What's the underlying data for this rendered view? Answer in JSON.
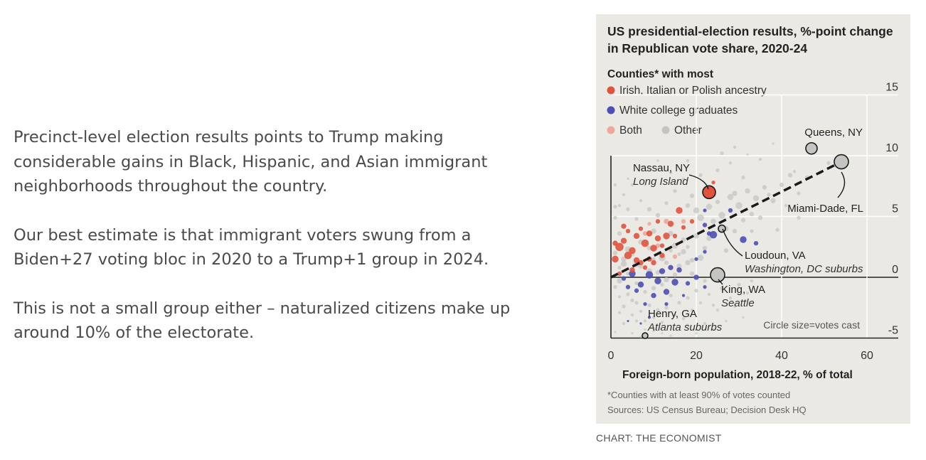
{
  "article": {
    "paragraphs": [
      "Precinct-level election results points to Trump making considerable gains in Black, Hispanic, and Asian immigrant neighborhoods throughout the country.",
      "Our best estimate is that immigrant voters swung from a Biden+27 voting bloc in 2020 to a Trump+1 group in 2024.",
      "This is not a small group either – naturalized citizens make up around 10% of the electorate."
    ]
  },
  "credit": "CHART: THE ECONOMIST",
  "chart_data": {
    "type": "scatter",
    "title": "US presidential-election results, %-point change in Republican vote share, 2020-24",
    "xlabel": "Foreign-born population, 2018-22, % of total",
    "ylabel": "",
    "xlim": [
      0,
      67
    ],
    "ylim": [
      -6,
      16
    ],
    "x_ticks": [
      0,
      20,
      40,
      60
    ],
    "y_ticks": [
      -5,
      0,
      5,
      10,
      15
    ],
    "grid": true,
    "legend_title": "Counties* with most",
    "legend": [
      {
        "label": "Irish, Italian or Polish ancestry",
        "color": "#e0533d"
      },
      {
        "label": "White college graduates",
        "color": "#4b4fb3"
      },
      {
        "label": "Both",
        "color": "#f0a79a"
      },
      {
        "label": "Other",
        "color": "#c4c4c2"
      }
    ],
    "size_note": "Circle size=votes cast",
    "trend_line": {
      "x": [
        0,
        54
      ],
      "y": [
        0,
        9.5
      ],
      "style": "dashed"
    },
    "annotations": [
      {
        "name": "Queens, NY",
        "subtitle": "",
        "x": 47,
        "y": 10.6,
        "size": 8
      },
      {
        "name": "Nassau, NY",
        "subtitle": "Long Island",
        "x": 23,
        "y": 7,
        "size": 9
      },
      {
        "name": "Miami-Dade, FL",
        "subtitle": "",
        "x": 54,
        "y": 9.5,
        "size": 10
      },
      {
        "name": "Loudoun, VA",
        "subtitle": "Washington, DC suburbs",
        "x": 26,
        "y": 4,
        "size": 5
      },
      {
        "name": "King, WA",
        "subtitle": "Seattle",
        "x": 25,
        "y": 0.2,
        "size": 10
      },
      {
        "name": "Henry, GA",
        "subtitle": "Atlanta suburbs",
        "x": 8,
        "y": -4.8,
        "size": 4
      }
    ],
    "series": [
      {
        "name": "Irish, Italian or Polish ancestry",
        "color": "#e0533d",
        "points": [
          [
            1,
            1.5,
            9
          ],
          [
            2,
            2.5,
            11
          ],
          [
            3,
            3,
            8
          ],
          [
            4,
            1.8,
            10
          ],
          [
            5,
            2.2,
            9
          ],
          [
            6,
            3.4,
            8
          ],
          [
            7,
            1.2,
            7
          ],
          [
            8,
            2.8,
            10
          ],
          [
            9,
            3.6,
            8
          ],
          [
            10,
            2.4,
            9
          ],
          [
            11,
            3.2,
            8
          ],
          [
            12,
            1.8,
            7
          ],
          [
            13,
            3.4,
            9
          ],
          [
            14,
            4.4,
            8
          ],
          [
            16,
            5.5,
            9
          ],
          [
            19,
            4.6,
            6
          ],
          [
            24,
            7.8,
            5
          ],
          [
            3,
            4.2,
            7
          ],
          [
            5,
            0.6,
            7
          ],
          [
            2,
            0.3,
            6
          ],
          [
            7,
            4,
            6
          ],
          [
            9,
            1.5,
            7
          ],
          [
            11,
            4.6,
            6
          ],
          [
            15,
            3.4,
            6
          ],
          [
            1,
            2.8,
            7
          ],
          [
            4,
            3.8,
            6
          ],
          [
            6,
            1.4,
            8
          ],
          [
            8,
            0.8,
            6
          ],
          [
            10,
            1.2,
            7
          ],
          [
            12,
            2.6,
            6
          ],
          [
            17,
            4.1,
            6
          ]
        ]
      },
      {
        "name": "White college graduates",
        "color": "#4b4fb3",
        "points": [
          [
            5,
            0.3,
            9
          ],
          [
            7,
            -0.6,
            8
          ],
          [
            9,
            0.2,
            10
          ],
          [
            11,
            -0.3,
            9
          ],
          [
            12,
            0.5,
            8
          ],
          [
            13,
            -1.2,
            8
          ],
          [
            14,
            0.8,
            7
          ],
          [
            10,
            -1.5,
            7
          ],
          [
            6,
            -1.1,
            6
          ],
          [
            8,
            -2.2,
            5
          ],
          [
            15,
            -0.4,
            9
          ],
          [
            16,
            0.6,
            7
          ],
          [
            4,
            -0.8,
            6
          ],
          [
            18,
            -0.5,
            6
          ],
          [
            20,
            1.5,
            5
          ],
          [
            22,
            -0.8,
            5
          ],
          [
            22,
            2.1,
            5
          ],
          [
            23,
            3.6,
            6
          ],
          [
            22,
            5.5,
            5
          ],
          [
            20,
            0,
            7
          ],
          [
            22,
            4.3,
            6
          ],
          [
            24,
            3.5,
            10
          ],
          [
            28,
            5.5,
            6
          ],
          [
            31,
            3.1,
            9
          ],
          [
            34,
            2.8,
            6
          ],
          [
            3,
            -0.1,
            6
          ],
          [
            9,
            -3.3,
            4
          ],
          [
            4,
            -3.6,
            3
          ],
          [
            13,
            -2.2,
            5
          ],
          [
            17,
            -1.5,
            4
          ],
          [
            7,
            -3.8,
            3
          ]
        ]
      },
      {
        "name": "Both",
        "color": "#f0a79a",
        "points": [
          [
            13,
            4.6,
            7
          ],
          [
            11,
            2.6,
            6
          ],
          [
            8,
            3.6,
            6
          ],
          [
            15,
            1.7,
            6
          ],
          [
            17,
            4.6,
            6
          ],
          [
            9,
            4.4,
            5
          ]
        ]
      },
      {
        "name": "Other",
        "color": "#c4c4c2",
        "points": [
          [
            1,
            2,
            6
          ],
          [
            2,
            0.8,
            5
          ],
          [
            3,
            1.5,
            7
          ],
          [
            4,
            0.3,
            5
          ],
          [
            5,
            1.9,
            6
          ],
          [
            6,
            -0.5,
            5
          ],
          [
            7,
            0.9,
            6
          ],
          [
            8,
            -1.2,
            5
          ],
          [
            9,
            2.4,
            6
          ],
          [
            10,
            1.5,
            5
          ],
          [
            11,
            0.4,
            6
          ],
          [
            12,
            -0.6,
            5
          ],
          [
            13,
            1.2,
            6
          ],
          [
            14,
            2.2,
            5
          ],
          [
            15,
            0.2,
            6
          ],
          [
            16,
            1.9,
            5
          ],
          [
            17,
            3.1,
            6
          ],
          [
            18,
            2.5,
            5
          ],
          [
            19,
            1.4,
            6
          ],
          [
            20,
            3.4,
            7
          ],
          [
            21,
            4.9,
            9
          ],
          [
            22,
            2.4,
            6
          ],
          [
            23,
            5.8,
            8
          ],
          [
            24,
            4.6,
            7
          ],
          [
            25,
            6.2,
            6
          ],
          [
            26,
            5.1,
            9
          ],
          [
            27,
            4,
            7
          ],
          [
            28,
            6.6,
            8
          ],
          [
            29,
            3.8,
            6
          ],
          [
            30,
            5.9,
            9
          ],
          [
            31,
            4.7,
            6
          ],
          [
            32,
            7.1,
            7
          ],
          [
            33,
            5.2,
            6
          ],
          [
            34,
            6.5,
            8
          ],
          [
            35,
            4.9,
            6
          ],
          [
            36,
            7.4,
            6
          ],
          [
            38,
            6.3,
            7
          ],
          [
            40,
            7.6,
            6
          ],
          [
            42,
            8.4,
            6
          ],
          [
            44,
            6.9,
            5
          ],
          [
            46,
            8.2,
            6
          ],
          [
            49,
            8.6,
            5
          ],
          [
            51,
            9.4,
            5
          ],
          [
            26,
            10.2,
            5
          ],
          [
            29,
            10.7,
            4
          ],
          [
            31,
            8.2,
            5
          ],
          [
            21,
            8.4,
            5
          ],
          [
            18,
            9.6,
            4
          ],
          [
            35,
            9.7,
            4
          ],
          [
            38,
            11,
            3
          ],
          [
            23,
            3.2,
            7
          ],
          [
            27,
            2.2,
            6
          ],
          [
            29,
            6.9,
            7
          ],
          [
            33,
            3.8,
            5
          ],
          [
            20,
            5.5,
            8
          ],
          [
            19,
            6.7,
            6
          ],
          [
            24,
            6.8,
            8
          ],
          [
            25,
            8.8,
            5
          ],
          [
            1,
            -0.8,
            5
          ],
          [
            2,
            -1.6,
            4
          ],
          [
            3,
            -2.4,
            5
          ],
          [
            4,
            -1.4,
            5
          ],
          [
            5,
            -3.1,
            4
          ],
          [
            6,
            -2.1,
            5
          ],
          [
            7,
            -2.8,
            4
          ],
          [
            8,
            -3.6,
            4
          ],
          [
            9,
            -2.3,
            5
          ],
          [
            10,
            -3.3,
            4
          ],
          [
            11,
            -2.7,
            5
          ],
          [
            12,
            -3.7,
            4
          ],
          [
            13,
            -2.5,
            5
          ],
          [
            14,
            -1.5,
            5
          ],
          [
            15,
            -3.1,
            4
          ],
          [
            16,
            -2.1,
            5
          ],
          [
            17,
            -3.4,
            4
          ],
          [
            18,
            -1.7,
            5
          ],
          [
            19,
            -2.7,
            4
          ],
          [
            20,
            -1.1,
            5
          ],
          [
            21,
            -2.1,
            4
          ],
          [
            22,
            -0.3,
            5
          ],
          [
            23,
            -1.4,
            4
          ],
          [
            24,
            -2.3,
            4
          ],
          [
            26,
            -0.9,
            5
          ],
          [
            28,
            -1.7,
            4
          ],
          [
            30,
            -0.6,
            5
          ],
          [
            32,
            -1.3,
            4
          ],
          [
            1,
            4.9,
            5
          ],
          [
            2,
            5.9,
            4
          ],
          [
            3,
            6.8,
            4
          ],
          [
            4,
            5.6,
            5
          ],
          [
            5,
            7.6,
            4
          ],
          [
            6,
            4.8,
            5
          ],
          [
            7,
            6.3,
            4
          ],
          [
            8,
            7.6,
            3
          ],
          [
            2,
            3.6,
            6
          ],
          [
            1,
            5.8,
            5
          ],
          [
            3,
            -3.8,
            4
          ],
          [
            5,
            -4.6,
            3
          ],
          [
            6,
            -3.6,
            4
          ],
          [
            8,
            -4.3,
            3
          ],
          [
            10,
            -4.4,
            3
          ],
          [
            12,
            -4.6,
            3
          ],
          [
            3,
            1.1,
            8
          ],
          [
            6,
            1.1,
            9
          ],
          [
            9,
            0.5,
            8
          ],
          [
            12,
            1.6,
            9
          ],
          [
            15,
            2.6,
            8
          ],
          [
            18,
            1.2,
            7
          ],
          [
            21,
            1.6,
            8
          ],
          [
            14,
            3.6,
            7
          ],
          [
            17,
            2.1,
            7
          ],
          [
            2,
            -0.3,
            7
          ],
          [
            4,
            2.3,
            8
          ],
          [
            7,
            2.9,
            7
          ],
          [
            10,
            3.8,
            7
          ],
          [
            16,
            0.9,
            7
          ],
          [
            19,
            0.3,
            6
          ],
          [
            11,
            5.1,
            6
          ],
          [
            13,
            6.1,
            5
          ],
          [
            9,
            5.6,
            6
          ],
          [
            15,
            7.1,
            5
          ],
          [
            18,
            5.9,
            6
          ],
          [
            17,
            8.1,
            4
          ],
          [
            14,
            8.6,
            4
          ],
          [
            11,
            9.6,
            3
          ],
          [
            1,
            7.6,
            4
          ],
          [
            4,
            8.1,
            3
          ],
          [
            7,
            9.1,
            3
          ],
          [
            28,
            9.4,
            4
          ],
          [
            32,
            10.1,
            3
          ],
          [
            37,
            6.8,
            5
          ],
          [
            41,
            5.9,
            4
          ],
          [
            44,
            4.9,
            5
          ],
          [
            47,
            5.6,
            4
          ],
          [
            39,
            3.9,
            5
          ],
          [
            43,
            8.7,
            4
          ],
          [
            33,
            -0.3,
            4
          ],
          [
            35,
            1.9,
            5
          ],
          [
            25,
            -2.7,
            4
          ],
          [
            27,
            -3.6,
            3
          ],
          [
            29,
            -2.4,
            4
          ],
          [
            31,
            -3.3,
            3
          ],
          [
            22,
            -3.8,
            4
          ],
          [
            24,
            -4.3,
            3
          ],
          [
            20,
            -4.6,
            3
          ],
          [
            7,
            -4.9,
            3
          ],
          [
            14,
            -4.8,
            3
          ],
          [
            1,
            -4.5,
            3
          ],
          [
            2,
            -2.9,
            4
          ],
          [
            5,
            -1.9,
            5
          ],
          [
            10,
            -0.9,
            6
          ],
          [
            13,
            -0.2,
            7
          ],
          [
            18,
            -3.9,
            3
          ]
        ]
      }
    ]
  }
}
